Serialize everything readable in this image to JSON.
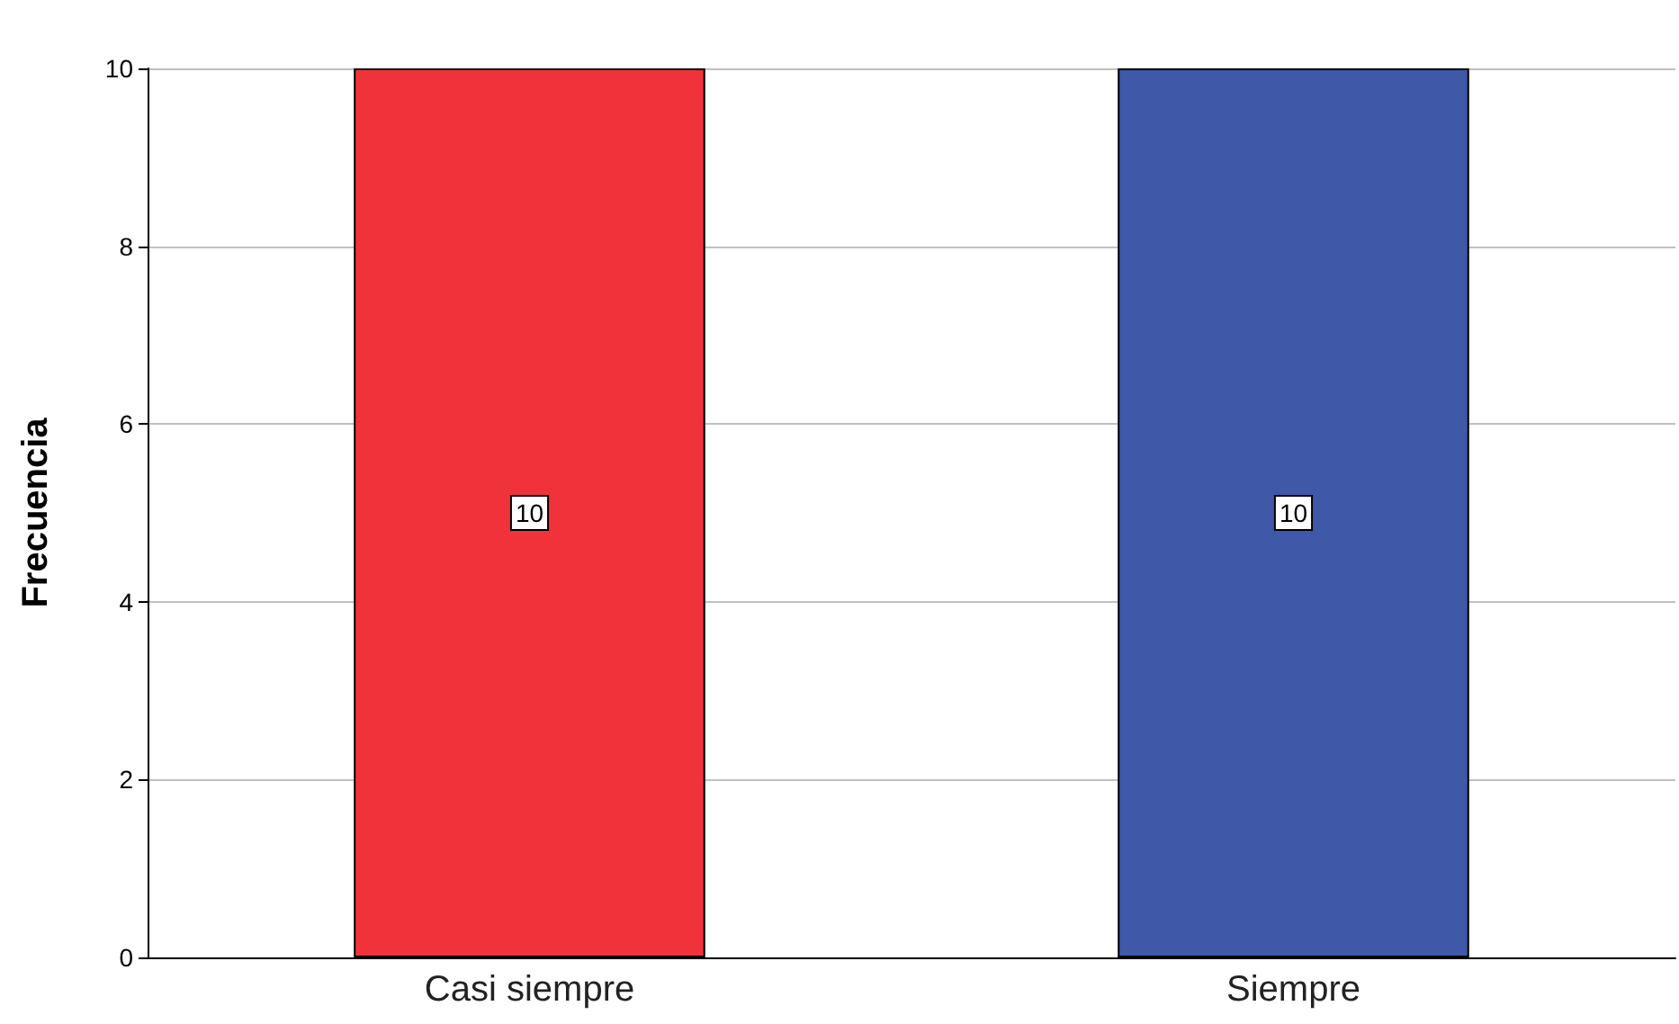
{
  "chart_data": {
    "type": "bar",
    "ylabel": "Frecuencia",
    "categories": [
      "Casi siempre",
      "Siempre"
    ],
    "values": [
      10,
      10
    ],
    "colors": [
      "#f0333a",
      "#3f58a8"
    ],
    "ylim": [
      0,
      10
    ],
    "yticks": [
      0,
      2,
      4,
      6,
      8,
      10
    ],
    "grid": "y",
    "data_labels": true
  }
}
